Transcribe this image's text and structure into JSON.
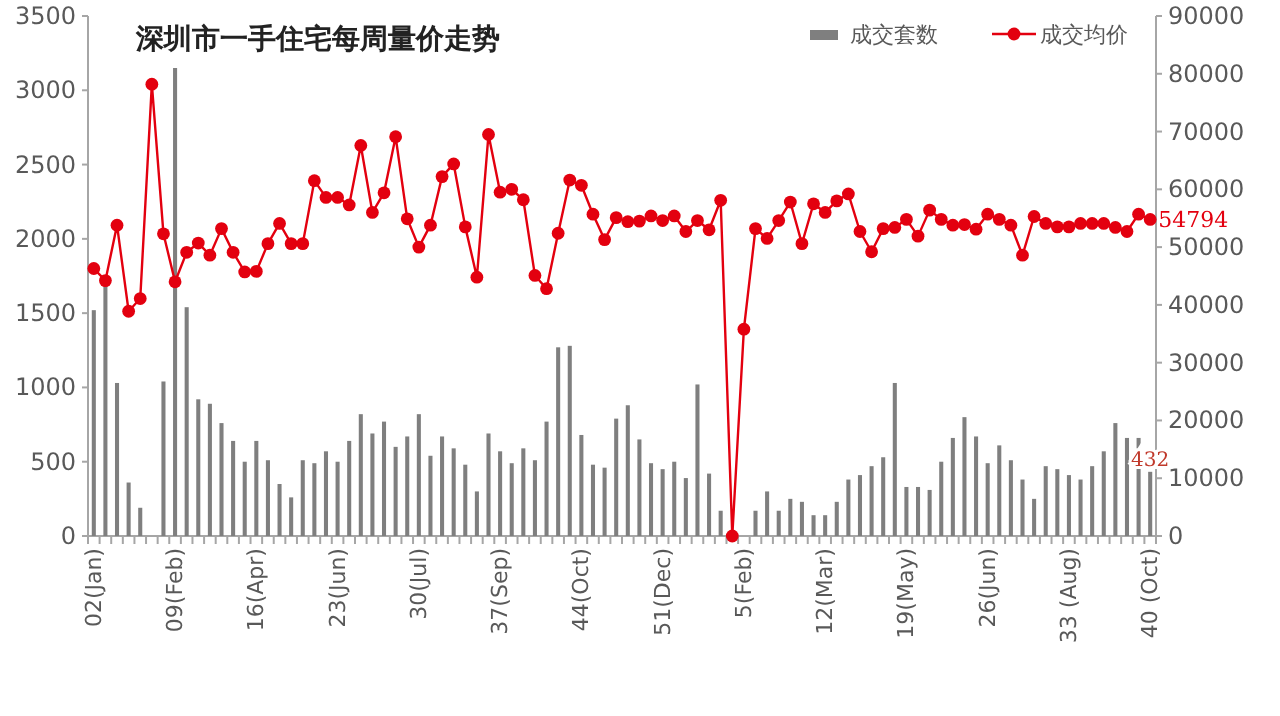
{
  "chart_data": {
    "type": "bar",
    "title": "深圳市一手住宅每周量价走势",
    "legend": "top right",
    "categories": [
      "02(Jan)",
      null,
      null,
      null,
      null,
      null,
      null,
      "09(Feb)",
      null,
      null,
      null,
      null,
      null,
      null,
      "16(Apr)",
      null,
      null,
      null,
      null,
      null,
      null,
      "23(Jun)",
      null,
      null,
      null,
      null,
      null,
      null,
      "30(Jul)",
      null,
      null,
      null,
      null,
      null,
      null,
      "37(Sep)",
      null,
      null,
      null,
      null,
      null,
      null,
      "44(Oct)",
      null,
      null,
      null,
      null,
      null,
      null,
      "51(Dec)",
      null,
      null,
      null,
      null,
      null,
      null,
      "5(Feb)",
      null,
      null,
      null,
      null,
      null,
      null,
      "12(Mar)",
      null,
      null,
      null,
      null,
      null,
      null,
      "19(May)",
      null,
      null,
      null,
      null,
      null,
      null,
      "26(Jun)",
      null,
      null,
      null,
      null,
      null,
      null,
      "33 (Aug)",
      null,
      null,
      null,
      null,
      null,
      null,
      "40 (Oct)"
    ],
    "ylim": [
      0,
      3500
    ],
    "yticks": [
      0,
      500,
      1000,
      1500,
      2000,
      2500,
      3000,
      3500
    ],
    "y2lim": [
      0,
      90000
    ],
    "y2ticks": [
      0,
      10000,
      20000,
      30000,
      40000,
      50000,
      60000,
      70000,
      80000,
      90000
    ],
    "series": [
      {
        "name": "成交套数",
        "color": "#7f7f7f",
        "values": [
          1520,
          1700,
          1030,
          360,
          190,
          null,
          1040,
          3150,
          1540,
          920,
          890,
          760,
          640,
          500,
          640,
          510,
          350,
          260,
          510,
          490,
          570,
          500,
          640,
          820,
          690,
          770,
          600,
          670,
          820,
          540,
          670,
          590,
          480,
          300,
          690,
          570,
          490,
          590,
          510,
          770,
          1270,
          1280,
          680,
          480,
          460,
          790,
          880,
          650,
          490,
          450,
          500,
          390,
          1020,
          420,
          170,
          null,
          null,
          170,
          300,
          170,
          250,
          230,
          140,
          140,
          230,
          380,
          410,
          470,
          530,
          1030,
          330,
          330,
          310,
          500,
          660,
          800,
          670,
          490,
          610,
          510,
          380,
          250,
          470,
          450,
          410,
          380,
          470,
          570,
          760,
          660,
          660,
          432
        ],
        "value_labels": [
          null,
          null,
          null,
          null,
          null,
          null,
          null,
          null,
          null,
          null,
          null,
          null,
          null,
          null,
          null,
          null,
          null,
          null,
          null,
          null,
          null,
          null,
          null,
          null,
          null,
          null,
          null,
          null,
          null,
          null,
          null,
          null,
          null,
          null,
          null,
          null,
          null,
          null,
          null,
          null,
          null,
          null,
          null,
          null,
          null,
          null,
          null,
          null,
          null,
          null,
          null,
          null,
          null,
          null,
          null,
          null,
          null,
          null,
          null,
          null,
          null,
          null,
          null,
          null,
          null,
          null,
          null,
          null,
          null,
          null,
          null,
          null,
          null,
          null,
          null,
          null,
          null,
          null,
          null,
          null,
          null,
          null,
          null,
          null,
          null,
          null,
          null,
          null,
          null,
          null,
          null,
          "432"
        ]
      },
      {
        "name": "成交均价",
        "type": "line",
        "axis": "y2",
        "marker": "circle",
        "color": "#e3000f",
        "values": [
          46300,
          44200,
          53800,
          38900,
          41100,
          78200,
          52300,
          44000,
          49100,
          50700,
          48600,
          53200,
          49100,
          45700,
          45800,
          50600,
          54100,
          50600,
          50600,
          61500,
          58600,
          58600,
          57300,
          67600,
          56000,
          59400,
          69100,
          54900,
          50000,
          53800,
          62200,
          64400,
          53500,
          44800,
          69500,
          59500,
          60000,
          58200,
          45100,
          42800,
          52400,
          61600,
          60700,
          55700,
          51300,
          55100,
          54400,
          54500,
          55400,
          54600,
          55400,
          52700,
          54600,
          53000,
          58100,
          0,
          35800,
          53200,
          51500,
          54600,
          57800,
          50600,
          57500,
          56000,
          58000,
          59200,
          52700,
          49200,
          53200,
          53400,
          54800,
          51900,
          56400,
          54800,
          53800,
          53900,
          53100,
          55700,
          54800,
          53800,
          48600,
          55300,
          54100,
          53500,
          53500,
          54100,
          54100,
          54100,
          53400,
          52700,
          55700,
          54794
        ],
        "value_labels": [
          null,
          null,
          null,
          null,
          null,
          null,
          null,
          null,
          null,
          null,
          null,
          null,
          null,
          null,
          null,
          null,
          null,
          null,
          null,
          null,
          null,
          null,
          null,
          null,
          null,
          null,
          null,
          null,
          null,
          null,
          null,
          null,
          null,
          null,
          null,
          null,
          null,
          null,
          null,
          null,
          null,
          null,
          null,
          null,
          null,
          null,
          null,
          null,
          null,
          null,
          null,
          null,
          null,
          null,
          null,
          null,
          null,
          null,
          null,
          null,
          null,
          null,
          null,
          null,
          null,
          null,
          null,
          null,
          null,
          null,
          null,
          null,
          null,
          null,
          null,
          null,
          null,
          null,
          null,
          null,
          null,
          null,
          null,
          null,
          null,
          null,
          null,
          null,
          null,
          null,
          null,
          "54794"
        ]
      }
    ]
  }
}
